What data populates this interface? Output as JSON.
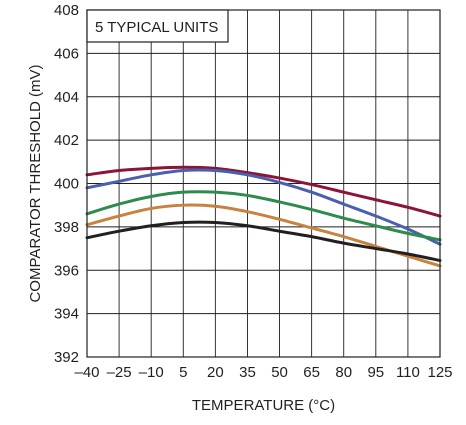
{
  "chart_data": {
    "type": "line",
    "title": "",
    "annotation": "5 TYPICAL UNITS",
    "xlabel": "TEMPERATURE (°C)",
    "ylabel": "COMPARATOR THRESHOLD (mV)",
    "xlim": [
      -40,
      125
    ],
    "ylim": [
      392,
      408
    ],
    "xticks": [
      -40,
      -25,
      -10,
      5,
      20,
      35,
      50,
      65,
      80,
      95,
      110,
      125
    ],
    "xtick_labels": [
      "–40",
      "–25",
      "–10",
      "5",
      "20",
      "35",
      "50",
      "65",
      "80",
      "95",
      "110",
      "125"
    ],
    "yticks": [
      392,
      394,
      396,
      398,
      400,
      402,
      404,
      406,
      408
    ],
    "ytick_labels": [
      "392",
      "394",
      "396",
      "398",
      "400",
      "402",
      "404",
      "406",
      "408"
    ],
    "grid": true,
    "x": [
      -40,
      -25,
      -10,
      5,
      20,
      35,
      50,
      65,
      80,
      95,
      110,
      125
    ],
    "series": [
      {
        "color": "#8b1538",
        "values": [
          400.4,
          400.6,
          400.7,
          400.75,
          400.7,
          400.5,
          400.25,
          399.95,
          399.6,
          399.25,
          398.9,
          398.5
        ]
      },
      {
        "color": "#4a5fb0",
        "values": [
          399.8,
          400.1,
          400.4,
          400.6,
          400.6,
          400.4,
          400.05,
          399.6,
          399.05,
          398.5,
          397.9,
          397.2
        ]
      },
      {
        "color": "#2e8b4e",
        "values": [
          398.6,
          399.05,
          399.4,
          399.6,
          399.6,
          399.45,
          399.15,
          398.8,
          398.4,
          398.05,
          397.7,
          397.4
        ]
      },
      {
        "color": "#c8823f",
        "values": [
          398.1,
          398.5,
          398.85,
          399.0,
          398.95,
          398.7,
          398.35,
          397.95,
          397.55,
          397.1,
          396.65,
          396.2
        ]
      },
      {
        "color": "#231f20",
        "values": [
          397.5,
          397.8,
          398.05,
          398.2,
          398.2,
          398.05,
          397.8,
          397.55,
          397.25,
          397.0,
          396.75,
          396.45
        ]
      }
    ]
  }
}
